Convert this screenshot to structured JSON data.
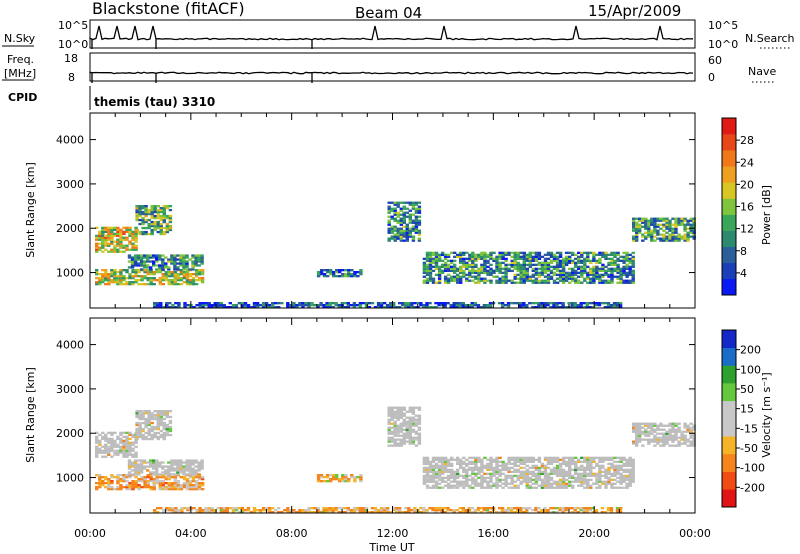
{
  "header": {
    "station": "Blackstone (fitACF)",
    "beam": "Beam 04",
    "date": "15/Apr/2009"
  },
  "panels": {
    "nsky_label": "N.Sky",
    "nsky_ticks": [
      "10^5",
      "10^0"
    ],
    "nsearch_label": "N.Search",
    "nsearch_ticks": [
      "10^5",
      "10^0"
    ],
    "freq_label_1": "Freq.",
    "freq_label_2": "[MHz]",
    "freq_ticks": [
      "18",
      "8"
    ],
    "nave_label": "Nave",
    "nave_ticks": [
      "60",
      "0"
    ],
    "cpid_label": "CPID",
    "cpid_value": "themis (tau) 3310"
  },
  "colors": {
    "power_scale": [
      "#0a18f5",
      "#1a3fb8",
      "#2a5f9a",
      "#2e8a6e",
      "#3aa65a",
      "#7ec43c",
      "#d8c624",
      "#f0a020",
      "#f07818",
      "#e84818",
      "#e01a14"
    ],
    "velocity_scale": [
      "#e01414",
      "#f04c14",
      "#f5841c",
      "#f5b428",
      "#c8c8c8",
      "#c8c8c8",
      "#64c83c",
      "#2ea02e",
      "#1a6cc8",
      "#1428c8"
    ],
    "ground_scatter": "#bdbdbd"
  },
  "chart_data": [
    {
      "type": "heatmap",
      "parameter": "Power",
      "title": "",
      "xlabel": "Time UT",
      "ylabel": "Slant Range [km]",
      "colorbar_label": "Power [dB]",
      "colorbar_ticks": [
        "4",
        "8",
        "12",
        "16",
        "20",
        "24",
        "28"
      ],
      "colorbar_range": [
        0,
        32
      ],
      "xlim": [
        0,
        24
      ],
      "ylim": [
        200,
        4600
      ],
      "x_tick_labels": [
        "00:00",
        "04:00",
        "08:00",
        "12:00",
        "16:00",
        "20:00",
        "00:00"
      ],
      "y_tick_values": [
        1000,
        2000,
        3000,
        4000
      ],
      "regions": [
        {
          "t0": 0.2,
          "t1": 1.8,
          "r0": 1450,
          "r1": 2000,
          "mean": 19
        },
        {
          "t0": 1.8,
          "t1": 3.2,
          "r0": 1850,
          "r1": 2500,
          "mean": 13
        },
        {
          "t0": 0.2,
          "t1": 4.5,
          "r0": 720,
          "r1": 1050,
          "mean": 17
        },
        {
          "t0": 1.5,
          "t1": 4.5,
          "r0": 1050,
          "r1": 1400,
          "mean": 10
        },
        {
          "t0": 9.0,
          "t1": 10.7,
          "r0": 900,
          "r1": 1050,
          "mean": 8
        },
        {
          "t0": 11.8,
          "t1": 13.0,
          "r0": 1700,
          "r1": 2600,
          "mean": 10
        },
        {
          "t0": 13.2,
          "t1": 21.5,
          "r0": 750,
          "r1": 1450,
          "mean": 10
        },
        {
          "t0": 21.5,
          "t1": 24.0,
          "r0": 1700,
          "r1": 2200,
          "mean": 12
        },
        {
          "t0": 2.5,
          "t1": 21.0,
          "r0": 200,
          "r1": 330,
          "mean": 6
        }
      ]
    },
    {
      "type": "heatmap",
      "parameter": "Velocity",
      "title": "",
      "xlabel": "Time UT",
      "ylabel": "Slant Range [km]",
      "colorbar_label": "Velocity [m s⁻¹]",
      "colorbar_ticks": [
        "-200",
        "-100",
        "-50",
        "-15",
        "15",
        "50",
        "100",
        "200"
      ],
      "xlim": [
        0,
        24
      ],
      "ylim": [
        200,
        4600
      ],
      "x_tick_labels": [
        "00:00",
        "04:00",
        "08:00",
        "12:00",
        "16:00",
        "20:00",
        "00:00"
      ],
      "y_tick_values": [
        1000,
        2000,
        3000,
        4000
      ],
      "regions": [
        {
          "t0": 0.2,
          "t1": 1.8,
          "r0": 1450,
          "r1": 2000,
          "mean": -5,
          "ground": true
        },
        {
          "t0": 1.8,
          "t1": 3.2,
          "r0": 1850,
          "r1": 2500,
          "mean": 0,
          "ground": true
        },
        {
          "t0": 0.2,
          "t1": 4.5,
          "r0": 720,
          "r1": 1050,
          "mean": -45,
          "ground": false
        },
        {
          "t0": 1.5,
          "t1": 4.5,
          "r0": 1050,
          "r1": 1400,
          "mean": 0,
          "ground": true
        },
        {
          "t0": 9.0,
          "t1": 10.7,
          "r0": 900,
          "r1": 1050,
          "mean": -30,
          "ground": false
        },
        {
          "t0": 11.8,
          "t1": 13.0,
          "r0": 1700,
          "r1": 2600,
          "mean": 0,
          "ground": true
        },
        {
          "t0": 13.2,
          "t1": 21.5,
          "r0": 750,
          "r1": 1450,
          "mean": 0,
          "ground": true
        },
        {
          "t0": 21.5,
          "t1": 24.0,
          "r0": 1700,
          "r1": 2200,
          "mean": 0,
          "ground": true
        },
        {
          "t0": 2.5,
          "t1": 21.0,
          "r0": 200,
          "r1": 330,
          "mean": -40,
          "ground": false
        }
      ]
    }
  ]
}
